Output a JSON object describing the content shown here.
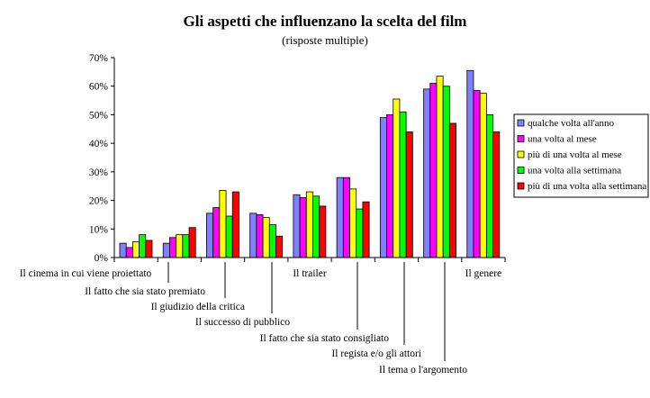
{
  "chart_data": {
    "type": "bar",
    "title": "Gli aspetti che influenzano la scelta del film",
    "subtitle": "(risposte multiple)",
    "xlabel": "",
    "ylabel": "",
    "ylim": [
      0,
      70
    ],
    "yticks": [
      "0%",
      "10%",
      "20%",
      "30%",
      "40%",
      "50%",
      "60%",
      "70%"
    ],
    "categories": [
      "Il cinema in cui viene proiettato",
      "Il fatto che sia stato premiato",
      "Il giudizio della critica",
      "Il successo di pubblico",
      "Il trailer",
      "Il fatto che sia stato consigliato",
      "Il regista e/o gli attori",
      "Il tema o l'argomento",
      "Il genere"
    ],
    "series": [
      {
        "name": "qualche volta all'anno",
        "color": "#8080ff",
        "values": [
          5,
          5,
          15.5,
          15.5,
          22,
          28,
          49,
          59,
          65.5
        ]
      },
      {
        "name": "una volta al mese",
        "color": "#ff00ff",
        "values": [
          3.5,
          7,
          17.5,
          15,
          21,
          28,
          50,
          61,
          58.5
        ]
      },
      {
        "name": "più di una volta al mese",
        "color": "#ffff00",
        "values": [
          5.5,
          8,
          23.5,
          14,
          23,
          24,
          55.5,
          63.5,
          57.5
        ]
      },
      {
        "name": "una volta alla settimana",
        "color": "#00ff00",
        "values": [
          8,
          8,
          14.5,
          11.5,
          21.5,
          17,
          51,
          60,
          50
        ]
      },
      {
        "name": "più di una volta alla settimana",
        "color": "#ff0000",
        "values": [
          6,
          10.5,
          23,
          7.5,
          18,
          19.5,
          44,
          47,
          44
        ]
      }
    ],
    "legend_position": "right",
    "grid": false
  }
}
